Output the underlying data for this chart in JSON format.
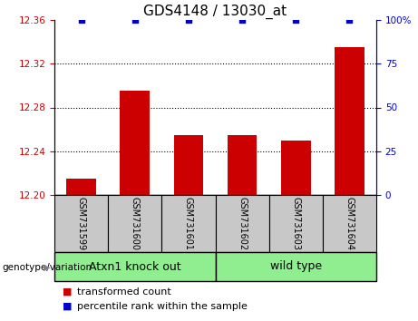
{
  "title": "GDS4148 / 13030_at",
  "samples": [
    "GSM731599",
    "GSM731600",
    "GSM731601",
    "GSM731602",
    "GSM731603",
    "GSM731604"
  ],
  "bar_values": [
    12.215,
    12.295,
    12.255,
    12.255,
    12.25,
    12.335
  ],
  "percentile_values": [
    100,
    100,
    100,
    100,
    100,
    100
  ],
  "ylim_left": [
    12.2,
    12.36
  ],
  "ylim_right": [
    0,
    100
  ],
  "yticks_left": [
    12.2,
    12.24,
    12.28,
    12.32,
    12.36
  ],
  "yticks_right": [
    0,
    25,
    50,
    75,
    100
  ],
  "bar_color": "#cc0000",
  "dot_color": "#0000cc",
  "label_area_color": "#c8c8c8",
  "group1_color": "#90ee90",
  "group2_color": "#90ee90",
  "group1_label": "Atxn1 knock out",
  "group2_label": "wild type",
  "group1_samples": [
    0,
    1,
    2
  ],
  "group2_samples": [
    3,
    4,
    5
  ],
  "legend_bar_label": "transformed count",
  "legend_dot_label": "percentile rank within the sample",
  "genotype_label": "genotype/variation",
  "title_fontsize": 11,
  "tick_fontsize": 7.5,
  "legend_fontsize": 8,
  "sample_fontsize": 7,
  "group_fontsize": 9,
  "bar_width": 0.55
}
